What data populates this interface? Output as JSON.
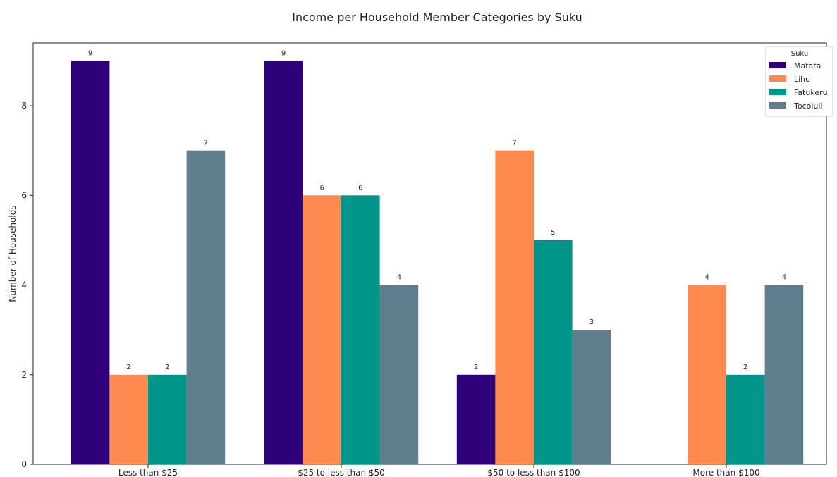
{
  "chart_data": {
    "type": "bar",
    "title": "Income per Household Member Categories by Suku",
    "xlabel": "",
    "ylabel": "Number of Households",
    "categories": [
      "Less than $25",
      "$25 to less than $50",
      "$50 to less than $100",
      "More than $100"
    ],
    "series": [
      {
        "name": "Matata",
        "color": "#2e0079",
        "values": [
          9,
          9,
          2,
          0
        ]
      },
      {
        "name": "Lihu",
        "color": "#ff8a50",
        "values": [
          2,
          6,
          7,
          4
        ]
      },
      {
        "name": "Fatukeru",
        "color": "#00968a",
        "values": [
          2,
          6,
          5,
          2
        ]
      },
      {
        "name": "Tocoluli",
        "color": "#607d8b",
        "values": [
          7,
          4,
          3,
          4
        ]
      }
    ],
    "yticks": [
      0,
      2,
      4,
      6,
      8
    ],
    "ylim": [
      0,
      9.4
    ],
    "legend": {
      "title": "Suku",
      "placement": "top-right"
    },
    "grid": false
  }
}
